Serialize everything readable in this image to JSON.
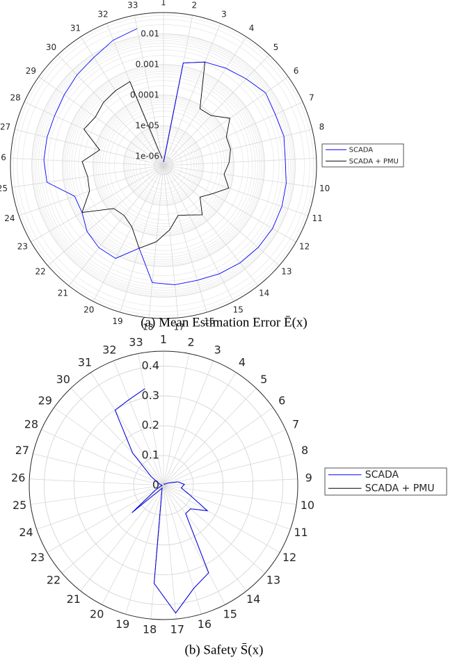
{
  "chart_data": [
    {
      "type": "polar",
      "caption": "(a) Mean Estimation Error Ē(x)",
      "log_scale": true,
      "grid": true,
      "minor_grid": true,
      "legend": "east",
      "categories": [
        "1",
        "2",
        "3",
        "4",
        "5",
        "6",
        "7",
        "8",
        "9",
        "10",
        "11",
        "12",
        "13",
        "14",
        "15",
        "16",
        "17",
        "18",
        "19",
        "20",
        "21",
        "22",
        "23",
        "24",
        "25",
        "26",
        "27",
        "28",
        "29",
        "30",
        "31",
        "32",
        "33"
      ],
      "rlim": [
        5e-07,
        0.05
      ],
      "rticks": [
        {
          "value": 1e-06,
          "label": "1e-06"
        },
        {
          "value": 1e-05,
          "label": "1e-05"
        },
        0.0001,
        0.001,
        0.01
      ],
      "series": [
        {
          "name": "SCADA",
          "color": "#0000ff",
          "values": [
            6.5e-07,
            0.0013,
            0.0022,
            0.003,
            0.0041,
            0.0062,
            0.0052,
            0.0056,
            0.0048,
            0.0056,
            0.0062,
            0.0065,
            0.0062,
            0.0056,
            0.0048,
            0.0041,
            0.0041,
            0.0035,
            0.00033,
            0.0013,
            0.0013,
            0.001,
            0.00059,
            0.00059,
            0.0035,
            0.0041,
            0.0041,
            0.0041,
            0.0048,
            0.0062,
            0.008,
            0.013,
            0.018
          ]
        },
        {
          "name": "SCADA + PMU",
          "color": "#000000",
          "values": [
            6.5e-07,
            0.0013,
            0.0022,
            8e-05,
            9e-05,
            0.00023,
            9e-05,
            9e-05,
            7e-05,
            5e-05,
            9e-05,
            3.5e-05,
            1.9e-05,
            5.6e-05,
            3.3e-05,
            2.5e-05,
            6.5e-05,
            0.00016,
            0.00033,
            9e-05,
            6e-05,
            7e-05,
            0.00059,
            0.00018,
            0.00016,
            0.00023,
            7e-05,
            0.00036,
            0.00027,
            0.00035,
            0.0004,
            0.00045,
            8.5e-07
          ]
        }
      ]
    },
    {
      "type": "polar",
      "caption": "(b) Safety S̄(x)",
      "log_scale": false,
      "grid": true,
      "minor_grid": false,
      "legend": "east",
      "categories": [
        "1",
        "2",
        "3",
        "4",
        "5",
        "6",
        "7",
        "8",
        "9",
        "10",
        "11",
        "12",
        "13",
        "14",
        "15",
        "16",
        "17",
        "18",
        "19",
        "20",
        "21",
        "22",
        "23",
        "24",
        "25",
        "26",
        "27",
        "28",
        "29",
        "30",
        "31",
        "32",
        "33"
      ],
      "rlim": [
        0,
        0.45
      ],
      "rticks": [
        0,
        0.1,
        0.2,
        0.3,
        0.4
      ],
      "series": [
        {
          "name": "SCADA",
          "color": "#0000ff",
          "values": [
            0.005,
            0.005,
            0.005,
            0.005,
            0.005,
            0.01,
            0.02,
            0.05,
            0.07,
            0.06,
            0.09,
            0.17,
            0.12,
            0.12,
            0.33,
            0.36,
            0.43,
            0.33,
            0.02,
            0.01,
            0.02,
            0.14,
            0.03,
            0.01,
            0.005,
            0.005,
            0.01,
            0.02,
            0.05,
            0.15,
            0.3,
            0.31,
            0.33
          ]
        },
        {
          "name": "SCADA + PMU",
          "color": "#000000",
          "values": [
            0.005,
            0.005,
            0.005,
            0.005,
            0.005,
            0.01,
            0.02,
            0.05,
            0.07,
            0.06,
            0.09,
            0.17,
            0.12,
            0.12,
            0.33,
            0.36,
            0.43,
            0.33,
            0.02,
            0.01,
            0.02,
            0.14,
            0.03,
            0.01,
            0.005,
            0.005,
            0.01,
            0.02,
            0.05,
            0.15,
            0.3,
            0.31,
            0.33
          ]
        }
      ]
    }
  ]
}
